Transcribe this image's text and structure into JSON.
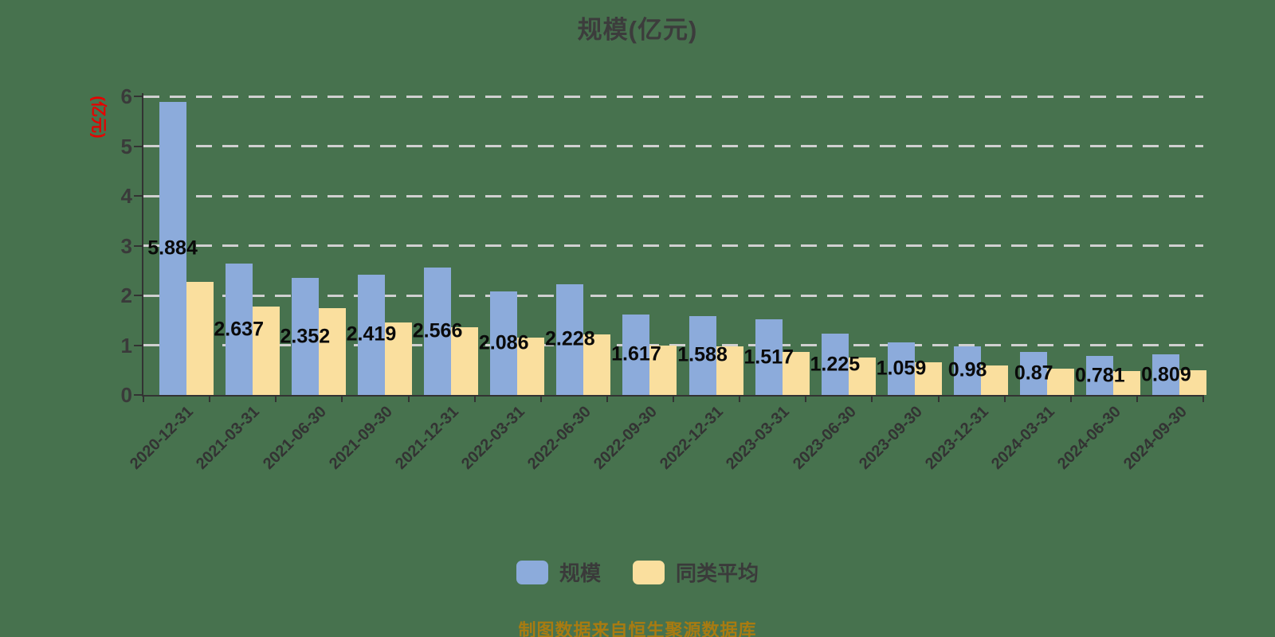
{
  "title": "规模(亿元)",
  "y_axis": {
    "name": "(亿元)",
    "name_color": "#e60000",
    "ticks": [
      0,
      1,
      2,
      3,
      4,
      5,
      6
    ]
  },
  "legend": {
    "items": [
      {
        "label": "规模",
        "color": "#8cabdb"
      },
      {
        "label": "同类平均",
        "color": "#fadf9e"
      }
    ]
  },
  "footer": "制图数据来自恒生聚源数据库",
  "colors": {
    "background": "#47724e",
    "bar_primary": "#8cabdb",
    "bar_secondary": "#fadf9e",
    "gridline": "#d0d0d0",
    "axis": "#333333",
    "title_text": "#3c3c3c",
    "value_label": "#0a0a0a",
    "footer_text": "#a87b11"
  },
  "chart_data": {
    "type": "bar",
    "title": "规模(亿元)",
    "ylabel": "(亿元)",
    "ylim": [
      0,
      6
    ],
    "grid": "horizontal-dashed",
    "legend_position": "bottom",
    "categories": [
      "2020-12-31",
      "2021-03-31",
      "2021-06-30",
      "2021-09-30",
      "2021-12-31",
      "2022-03-31",
      "2022-06-30",
      "2022-09-30",
      "2022-12-31",
      "2023-03-31",
      "2023-06-30",
      "2023-09-30",
      "2023-12-31",
      "2024-03-31",
      "2024-06-30",
      "2024-09-30"
    ],
    "series": [
      {
        "name": "规模",
        "color": "#8cabdb",
        "show_value_labels": true,
        "values": [
          5.884,
          2.637,
          2.352,
          2.419,
          2.566,
          2.086,
          2.228,
          1.617,
          1.588,
          1.517,
          1.225,
          1.059,
          0.98,
          0.87,
          0.781,
          0.809
        ],
        "labels": [
          "5.884",
          "2.637",
          "2.352",
          "2.419",
          "2.566",
          "2.086",
          "2.228",
          "1.617",
          "1.588",
          "1.517",
          "1.225",
          "1.059",
          "0.98",
          "0.87",
          "0.781",
          "0.809"
        ]
      },
      {
        "name": "同类平均",
        "color": "#fadf9e",
        "show_value_labels": false,
        "values": [
          2.27,
          1.78,
          1.74,
          1.46,
          1.36,
          1.16,
          1.22,
          1.0,
          0.98,
          0.87,
          0.76,
          0.66,
          0.59,
          0.53,
          0.48,
          0.5
        ]
      }
    ]
  }
}
